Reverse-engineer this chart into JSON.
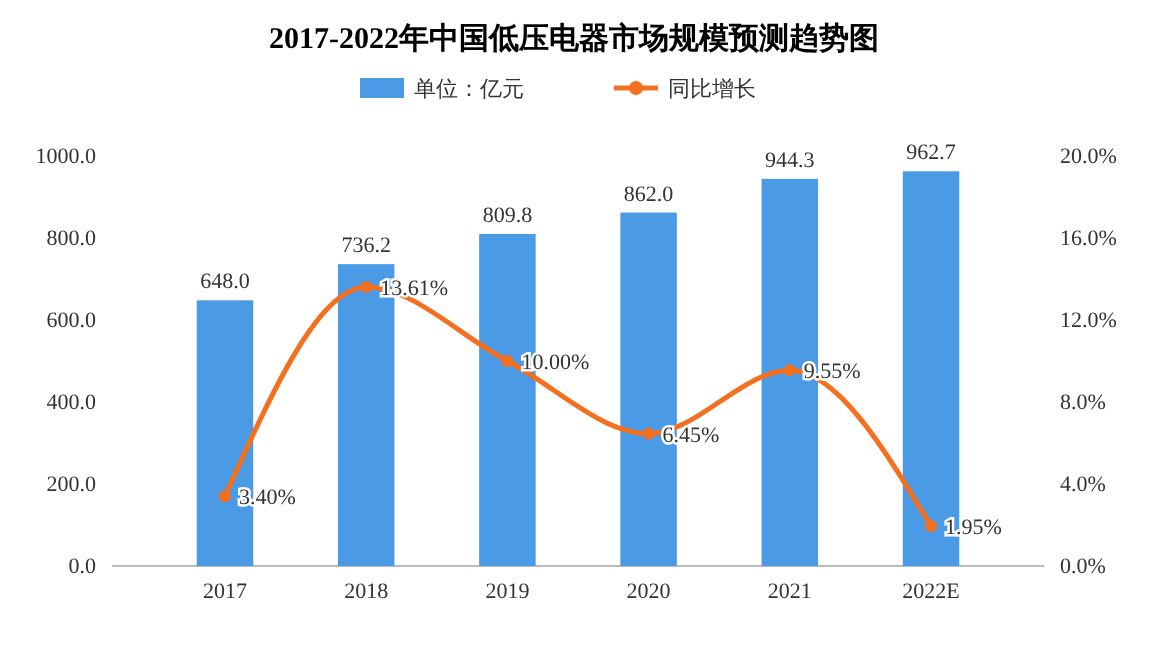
{
  "chart_data": {
    "type": "bar",
    "title": "2017-2022年中国低压电器市场规模预测趋势图",
    "categories": [
      "2017",
      "2018",
      "2019",
      "2020",
      "2021",
      "2022E"
    ],
    "series": [
      {
        "name": "单位：亿元",
        "color": "#4a9ae6",
        "values": [
          648.0,
          736.2,
          809.8,
          862.0,
          944.3,
          962.7
        ],
        "value_labels": [
          "648.0",
          "736.2",
          "809.8",
          "862.0",
          "944.3",
          "962.7"
        ]
      },
      {
        "name": "同比增长",
        "type": "line",
        "axis": "y2",
        "color": "#f4701f",
        "marker": "circle",
        "values": [
          3.4,
          13.61,
          10.0,
          6.45,
          9.55,
          1.95
        ],
        "value_labels": [
          "3.40%",
          "13.61%",
          "10.00%",
          "6.45%",
          "9.55%",
          "1.95%"
        ]
      }
    ],
    "ylim": [
      0,
      1000
    ],
    "yticks": [
      {
        "value": 0,
        "label": "0.0"
      },
      {
        "value": 200,
        "label": "200.0"
      },
      {
        "value": 400,
        "label": "400.0"
      },
      {
        "value": 600,
        "label": "600.0"
      },
      {
        "value": 800,
        "label": "800.0"
      },
      {
        "value": 1000,
        "label": "1000.0"
      }
    ],
    "y2lim": [
      0,
      20
    ],
    "y2ticks": [
      {
        "value": 0,
        "label": "0.0%"
      },
      {
        "value": 4,
        "label": "4.0%"
      },
      {
        "value": 8,
        "label": "8.0%"
      },
      {
        "value": 12,
        "label": "12.0%"
      },
      {
        "value": 16,
        "label": "16.0%"
      },
      {
        "value": 20,
        "label": "20.0%"
      }
    ],
    "legend": "top",
    "grid": false
  }
}
